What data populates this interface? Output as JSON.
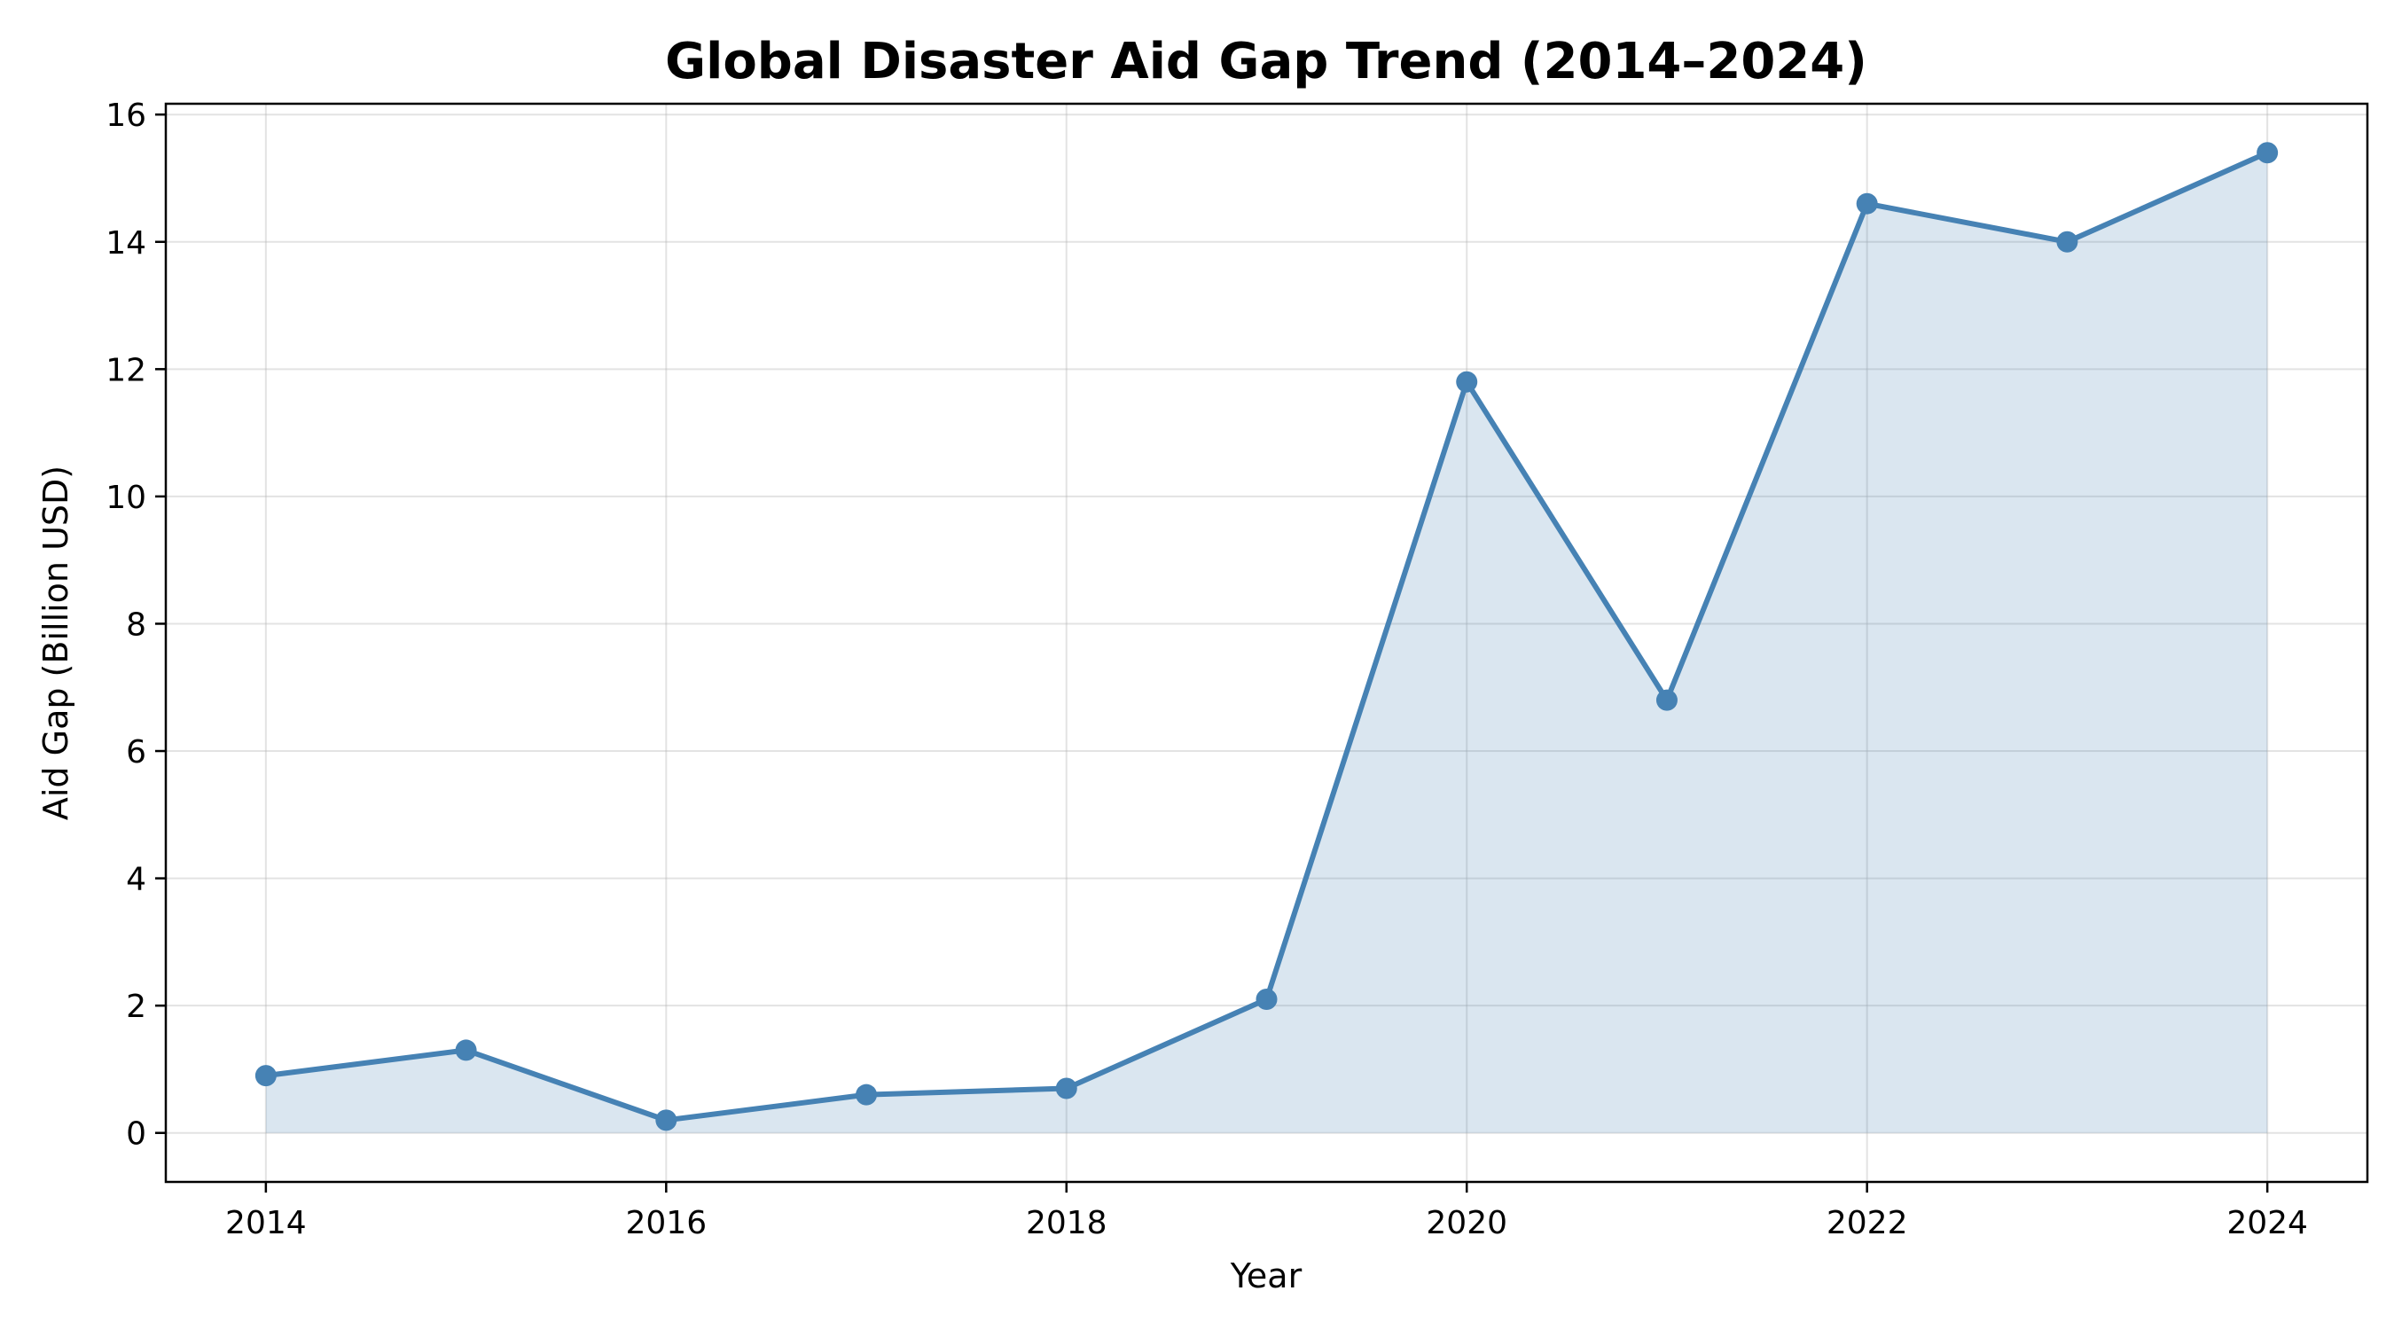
{
  "chart_data": {
    "type": "area",
    "title": "Global Disaster Aid Gap Trend (2014–2024)",
    "xlabel": "Year",
    "ylabel": "Aid Gap (Billion USD)",
    "x": [
      2014,
      2015,
      2016,
      2017,
      2018,
      2019,
      2020,
      2021,
      2022,
      2023,
      2024
    ],
    "series": [
      {
        "values": [
          0.9,
          1.3,
          0.2,
          0.6,
          0.7,
          2.1,
          11.8,
          6.8,
          14.6,
          14.0,
          15.4
        ],
        "color": "#4682b4",
        "fill_color": "#4682b4",
        "fill_opacity": 0.2,
        "marker": "circle"
      }
    ],
    "xlim": [
      2013.5,
      2024.5
    ],
    "ylim": [
      -0.77,
      16.17
    ],
    "xticks": [
      "2014",
      "2016",
      "2018",
      "2020",
      "2022",
      "2024"
    ],
    "yticks": [
      "0",
      "2",
      "4",
      "6",
      "8",
      "10",
      "12",
      "14",
      "16"
    ],
    "grid": true
  }
}
